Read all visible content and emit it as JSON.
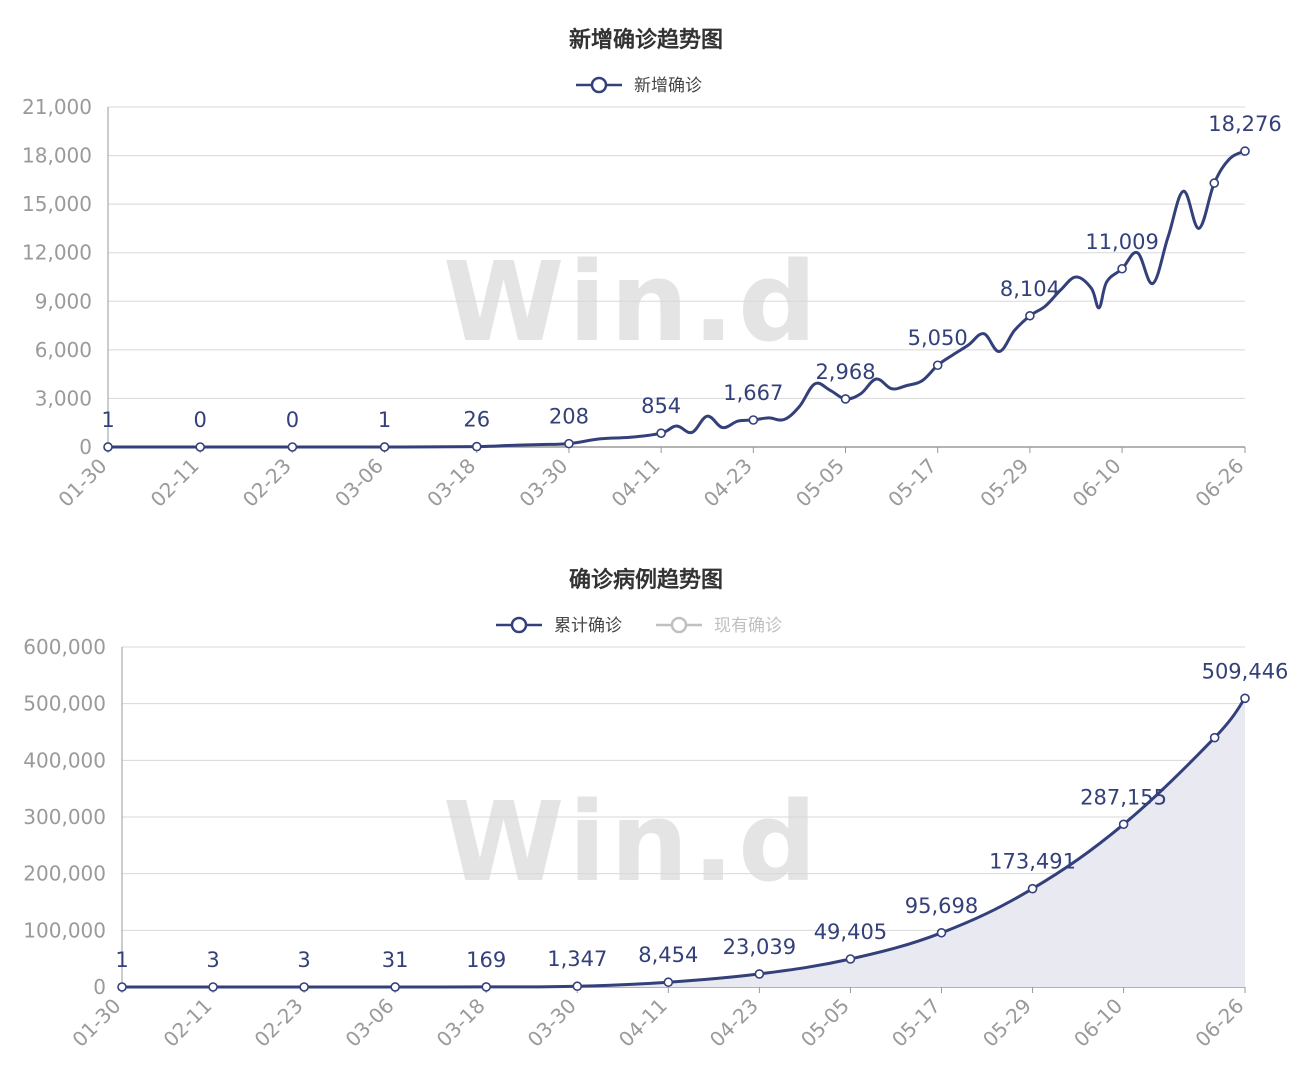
{
  "watermark": "Win.d",
  "colors": {
    "line": "#34407a",
    "grid": "#d8d8d8",
    "axis": "#9a9a9a",
    "legend_off": "#c0c0c0",
    "area": "#e9eaf1"
  },
  "chart_data": [
    {
      "type": "line",
      "title": "新增确诊趋势图",
      "legend": [
        {
          "name": "新增确诊",
          "active": true
        }
      ],
      "ylim": [
        0,
        21000
      ],
      "yticks": [
        "0",
        "3,000",
        "6,000",
        "9,000",
        "12,000",
        "15,000",
        "18,000",
        "21,000"
      ],
      "xticks": [
        "01-30",
        "02-11",
        "02-23",
        "03-06",
        "03-18",
        "03-30",
        "04-11",
        "04-23",
        "05-05",
        "05-17",
        "05-29",
        "06-10",
        "06-26"
      ],
      "series": [
        {
          "name": "新增确诊",
          "x": [
            "01-30",
            "02-11",
            "02-23",
            "03-06",
            "03-18",
            "03-22",
            "03-26",
            "03-30",
            "04-03",
            "04-07",
            "04-11",
            "04-13",
            "04-15",
            "04-17",
            "04-19",
            "04-21",
            "04-23",
            "04-25",
            "04-27",
            "04-29",
            "05-01",
            "05-03",
            "05-05",
            "05-07",
            "05-09",
            "05-11",
            "05-13",
            "05-15",
            "05-17",
            "05-19",
            "05-21",
            "05-23",
            "05-25",
            "05-27",
            "05-29",
            "05-31",
            "06-02",
            "06-04",
            "06-06",
            "06-07",
            "06-08",
            "06-10",
            "06-12",
            "06-14",
            "06-16",
            "06-18",
            "06-20",
            "06-22",
            "06-24",
            "06-26"
          ],
          "values": [
            1,
            0,
            0,
            1,
            26,
            90,
            150,
            208,
            500,
            600,
            854,
            1300,
            900,
            1900,
            1200,
            1600,
            1667,
            1800,
            1700,
            2500,
            3900,
            3500,
            2968,
            3300,
            4200,
            3600,
            3800,
            4100,
            5050,
            5700,
            6300,
            7000,
            5900,
            7200,
            8104,
            8700,
            9700,
            10500,
            9800,
            8600,
            10200,
            11009,
            12000,
            10100,
            13000,
            15800,
            13500,
            16300,
            17800,
            18276
          ]
        }
      ],
      "data_labels": [
        {
          "x": "01-30",
          "label": "1"
        },
        {
          "x": "02-11",
          "label": "0"
        },
        {
          "x": "02-23",
          "label": "0"
        },
        {
          "x": "03-06",
          "label": "1"
        },
        {
          "x": "03-18",
          "label": "26"
        },
        {
          "x": "03-30",
          "label": "208"
        },
        {
          "x": "04-11",
          "label": "854"
        },
        {
          "x": "04-23",
          "label": "1,667"
        },
        {
          "x": "05-05",
          "label": "2,968"
        },
        {
          "x": "05-17",
          "label": "5,050"
        },
        {
          "x": "05-29",
          "label": "8,104"
        },
        {
          "x": "06-10",
          "label": "11,009"
        },
        {
          "x": "06-26",
          "label": "18,276"
        }
      ],
      "grid": true
    },
    {
      "type": "area",
      "title": "确诊病例趋势图",
      "legend": [
        {
          "name": "累计确诊",
          "active": true
        },
        {
          "name": "现有确诊",
          "active": false
        }
      ],
      "ylim": [
        0,
        600000
      ],
      "yticks": [
        "0",
        "100,000",
        "200,000",
        "300,000",
        "400,000",
        "500,000",
        "600,000"
      ],
      "xticks": [
        "01-30",
        "02-11",
        "02-23",
        "03-06",
        "03-18",
        "03-30",
        "04-11",
        "04-23",
        "05-05",
        "05-17",
        "05-29",
        "06-10",
        "06-26"
      ],
      "series": [
        {
          "name": "累计确诊",
          "x": [
            "01-30",
            "02-11",
            "02-23",
            "03-06",
            "03-18",
            "03-30",
            "04-11",
            "04-23",
            "05-05",
            "05-17",
            "05-29",
            "06-10",
            "06-22",
            "06-26"
          ],
          "values": [
            1,
            3,
            3,
            31,
            169,
            1347,
            8454,
            23039,
            49405,
            95698,
            173491,
            287155,
            440000,
            509446
          ]
        }
      ],
      "data_labels": [
        {
          "x": "01-30",
          "label": "1"
        },
        {
          "x": "02-11",
          "label": "3"
        },
        {
          "x": "02-23",
          "label": "3"
        },
        {
          "x": "03-06",
          "label": "31"
        },
        {
          "x": "03-18",
          "label": "169"
        },
        {
          "x": "03-30",
          "label": "1,347"
        },
        {
          "x": "04-11",
          "label": "8,454"
        },
        {
          "x": "04-23",
          "label": "23,039"
        },
        {
          "x": "05-05",
          "label": "49,405"
        },
        {
          "x": "05-17",
          "label": "95,698"
        },
        {
          "x": "05-29",
          "label": "173,491"
        },
        {
          "x": "06-10",
          "label": "287,155"
        },
        {
          "x": "06-26",
          "label": "509,446"
        }
      ],
      "grid": true
    }
  ]
}
